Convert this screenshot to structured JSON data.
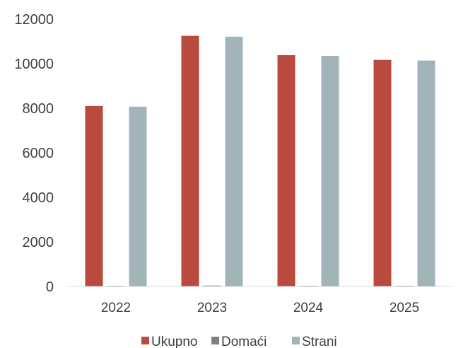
{
  "chart_data": {
    "type": "bar",
    "categories": [
      "2022",
      "2023",
      "2024",
      "2025"
    ],
    "series": [
      {
        "name": "Ukupno",
        "color": "#b94a3e",
        "values": [
          8100,
          11250,
          10380,
          10170
        ]
      },
      {
        "name": "Domaći",
        "color": "#7f7f7f",
        "values": [
          30,
          40,
          30,
          30
        ]
      },
      {
        "name": "Strani",
        "color": "#a2b4ba",
        "values": [
          8070,
          11210,
          10350,
          10140
        ]
      }
    ],
    "ylim": [
      0,
      12000
    ],
    "yticks": [
      "0",
      "2000",
      "4000",
      "6000",
      "8000",
      "10000",
      "12000"
    ],
    "grid": false,
    "legend_position": "bottom",
    "title": "",
    "xlabel": "",
    "ylabel": ""
  }
}
